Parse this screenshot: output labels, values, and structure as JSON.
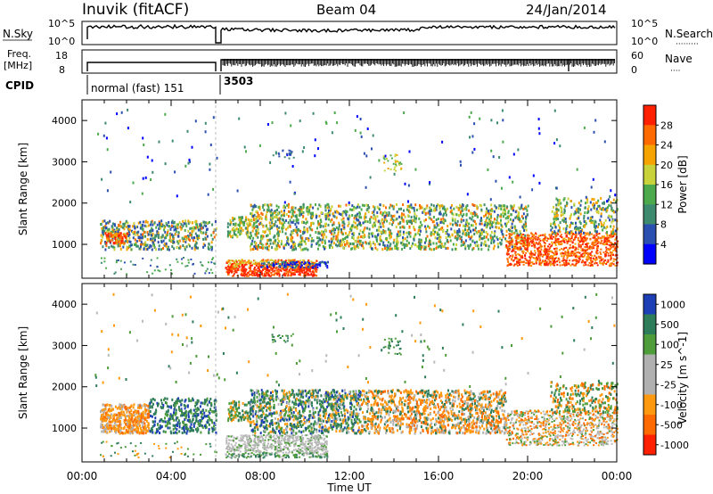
{
  "header": {
    "station": "Inuvik (fitACF)",
    "beam": "Beam 04",
    "date": "24/Jan/2014"
  },
  "strip_panels": {
    "nsky": {
      "label": "N.Sky",
      "y_ticks": [
        "10^5",
        "10^0"
      ]
    },
    "nsearch": {
      "label": "N.Search",
      "dots": "·········",
      "y_ticks": [
        "10^5",
        "10^0"
      ]
    },
    "freq": {
      "label_line1": "Freq.",
      "label_line2": "[MHz]",
      "y_ticks": [
        "18",
        "8"
      ]
    },
    "nave": {
      "label": "Nave",
      "dots": "····",
      "y_ticks": [
        "60",
        "0"
      ]
    },
    "cpid": {
      "label": "CPID",
      "segments": [
        {
          "text": "normal (fast) 151",
          "start_hour": 0
        },
        {
          "text": "3503",
          "start_hour": 6.2
        }
      ]
    }
  },
  "colors": {
    "power_scale": [
      "#0000ff",
      "#2a4fb0",
      "#3e8a6e",
      "#4caa4c",
      "#c8d23a",
      "#f5a300",
      "#ff6a00",
      "#ff2000"
    ],
    "velocity_scale": [
      "#1d3fb5",
      "#2e7d5a",
      "#4e9c3a",
      "#b0b0b0",
      "#b0b0b0",
      "#ff9a10",
      "#ff6a00",
      "#ff2000"
    ],
    "scatter_ground": "#b8b8b8"
  },
  "chart_data": [
    {
      "type": "heatmap",
      "title": "Power",
      "xlabel": "",
      "ylabel": "Slant Range [km]",
      "x_unit": "hours UT",
      "xlim": [
        0,
        24
      ],
      "ylim": [
        180,
        4500
      ],
      "y_ticks": [
        1000,
        2000,
        3000,
        4000
      ],
      "colorbar": {
        "label": "Power [dB]",
        "levels": [
          4,
          8,
          12,
          16,
          20,
          24,
          28
        ],
        "range": [
          0,
          32
        ]
      },
      "scatter_bands": [
        {
          "x": [
            0.8,
            6.0
          ],
          "y": [
            900,
            1600
          ],
          "level": "mixed 8-24 dB"
        },
        {
          "x": [
            6.4,
            10.5
          ],
          "y": [
            250,
            700
          ],
          "level": "20-30 dB"
        },
        {
          "x": [
            6.4,
            20.0
          ],
          "y": [
            900,
            2000
          ],
          "level": "8-20 dB"
        },
        {
          "x": [
            19.0,
            24.0
          ],
          "y": [
            500,
            1300
          ],
          "level": "24-30 dB"
        },
        {
          "x": [
            21.0,
            24.0
          ],
          "y": [
            1300,
            2100
          ],
          "level": "8-16 dB"
        }
      ]
    },
    {
      "type": "heatmap",
      "title": "Velocity",
      "xlabel": "Time UT",
      "ylabel": "Slant Range [km]",
      "x_unit": "hours UT",
      "xlim": [
        0,
        24
      ],
      "ylim": [
        180,
        4500
      ],
      "x_ticks": [
        "00:00",
        "04:00",
        "08:00",
        "12:00",
        "16:00",
        "20:00",
        "00:00"
      ],
      "y_ticks": [
        1000,
        2000,
        3000,
        4000
      ],
      "colorbar": {
        "label": "Velocity [m s^-1]",
        "levels": [
          1000,
          500,
          100,
          25,
          -25,
          -100,
          -500,
          -1000
        ]
      },
      "scatter_bands": [
        {
          "x": [
            0.8,
            3.0
          ],
          "y": [
            900,
            1600
          ],
          "level": "-100 to -500 m/s"
        },
        {
          "x": [
            3.0,
            6.0
          ],
          "y": [
            900,
            1700
          ],
          "level": "+100 to +500 m/s"
        },
        {
          "x": [
            6.4,
            11.0
          ],
          "y": [
            300,
            800
          ],
          "level": "ground scatter"
        },
        {
          "x": [
            7.5,
            12.5
          ],
          "y": [
            900,
            1900
          ],
          "level": "+100 to +500 m/s"
        },
        {
          "x": [
            12.5,
            19.0
          ],
          "y": [
            900,
            1900
          ],
          "level": "-100 to -500 m/s"
        },
        {
          "x": [
            19.0,
            24.0
          ],
          "y": [
            600,
            1400
          ],
          "level": "ground scatter"
        }
      ]
    }
  ]
}
